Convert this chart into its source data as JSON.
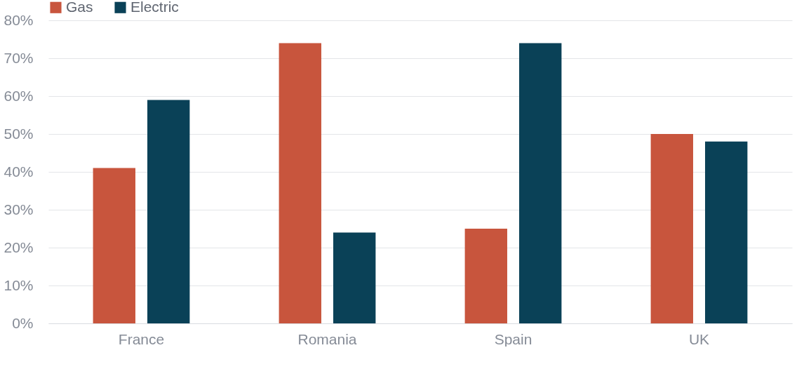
{
  "chart_data": {
    "type": "bar",
    "categories": [
      "France",
      "Romania",
      "Spain",
      "UK"
    ],
    "series": [
      {
        "name": "Gas",
        "color": "#c8553d",
        "values": [
          41,
          74,
          25,
          50
        ]
      },
      {
        "name": "Electric",
        "color": "#0a4157",
        "values": [
          59,
          24,
          74,
          48
        ]
      }
    ],
    "ylim": [
      0,
      80
    ],
    "yticks": [
      {
        "value": 0,
        "label": "0%"
      },
      {
        "value": 10,
        "label": "10%"
      },
      {
        "value": 20,
        "label": "20%"
      },
      {
        "value": 30,
        "label": "30%"
      },
      {
        "value": 40,
        "label": "40%"
      },
      {
        "value": 50,
        "label": "50%"
      },
      {
        "value": 60,
        "label": "60%"
      },
      {
        "value": 70,
        "label": "70%"
      },
      {
        "value": 80,
        "label": "80%"
      }
    ],
    "grid": "y",
    "legend": "top"
  }
}
